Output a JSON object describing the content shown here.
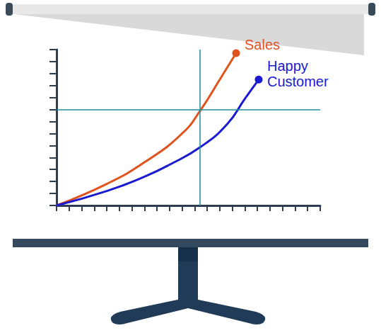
{
  "chart_data": {
    "type": "line",
    "series": [
      {
        "name": "Sales",
        "color": "#e0531f",
        "marker": "end_dot",
        "x": [
          0,
          4,
          7,
          10,
          11.5,
          13,
          14.3
        ],
        "values": [
          0,
          1.8,
          3.6,
          6,
          8,
          10.5,
          12.7
        ]
      },
      {
        "name": "Happy Customer",
        "color": "#1a1ad0",
        "marker": "end_dot",
        "x": [
          0,
          4,
          7,
          9,
          11.5,
          13.6,
          15,
          16.1
        ],
        "values": [
          0,
          1.2,
          2.4,
          3.4,
          4.9,
          6.8,
          8.9,
          10.5
        ]
      }
    ],
    "xlim": [
      0,
      21
    ],
    "xticks": [
      0,
      1,
      2,
      3,
      4,
      5,
      6,
      7,
      8,
      9,
      10,
      11,
      12,
      13,
      14,
      15,
      16,
      17,
      18,
      19,
      20,
      21
    ],
    "ylim": [
      0,
      13
    ],
    "yticks": [
      0,
      1,
      2,
      3,
      4,
      5,
      6,
      7,
      8,
      9,
      10,
      11,
      12,
      13
    ],
    "crosshair": {
      "x": 11.4,
      "y": 8
    },
    "grid": false,
    "tick_labels": false
  }
}
